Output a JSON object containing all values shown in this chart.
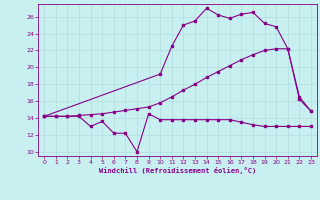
{
  "title": "",
  "xlabel": "Windchill (Refroidissement éolien,°C)",
  "background_color": "#c8f0f0",
  "line_color": "#880088",
  "grid_color": "#b0dede",
  "ylim": [
    9.5,
    27.5
  ],
  "xlim": [
    -0.5,
    23.5
  ],
  "line1_x": [
    0,
    1,
    2,
    3,
    4,
    5,
    6,
    7,
    8,
    9,
    10,
    11,
    12,
    13,
    14,
    15,
    16,
    17,
    18,
    19,
    20,
    21,
    22,
    23
  ],
  "line1_y": [
    14.2,
    14.2,
    14.2,
    14.2,
    13.0,
    13.6,
    12.2,
    12.2,
    10.0,
    14.5,
    13.8,
    13.8,
    13.8,
    13.8,
    13.8,
    13.8,
    13.8,
    13.5,
    13.2,
    13.0,
    13.0,
    13.0,
    13.0,
    13.0
  ],
  "line2_x": [
    0,
    1,
    2,
    3,
    4,
    5,
    6,
    7,
    8,
    9,
    10,
    11,
    12,
    13,
    14,
    15,
    16,
    17,
    18,
    19,
    20,
    21,
    22,
    23
  ],
  "line2_y": [
    14.2,
    14.2,
    14.2,
    14.3,
    14.4,
    14.5,
    14.7,
    14.9,
    15.1,
    15.3,
    15.8,
    16.5,
    17.3,
    18.0,
    18.8,
    19.5,
    20.2,
    20.9,
    21.5,
    22.0,
    22.2,
    22.2,
    16.5,
    14.8
  ],
  "line3_x": [
    0,
    10,
    11,
    12,
    13,
    14,
    15,
    16,
    17,
    18,
    19,
    20,
    21,
    22,
    23
  ],
  "line3_y": [
    14.2,
    19.2,
    22.5,
    25.0,
    25.5,
    27.0,
    26.2,
    25.8,
    26.3,
    26.5,
    25.2,
    24.8,
    22.2,
    16.2,
    14.8
  ]
}
